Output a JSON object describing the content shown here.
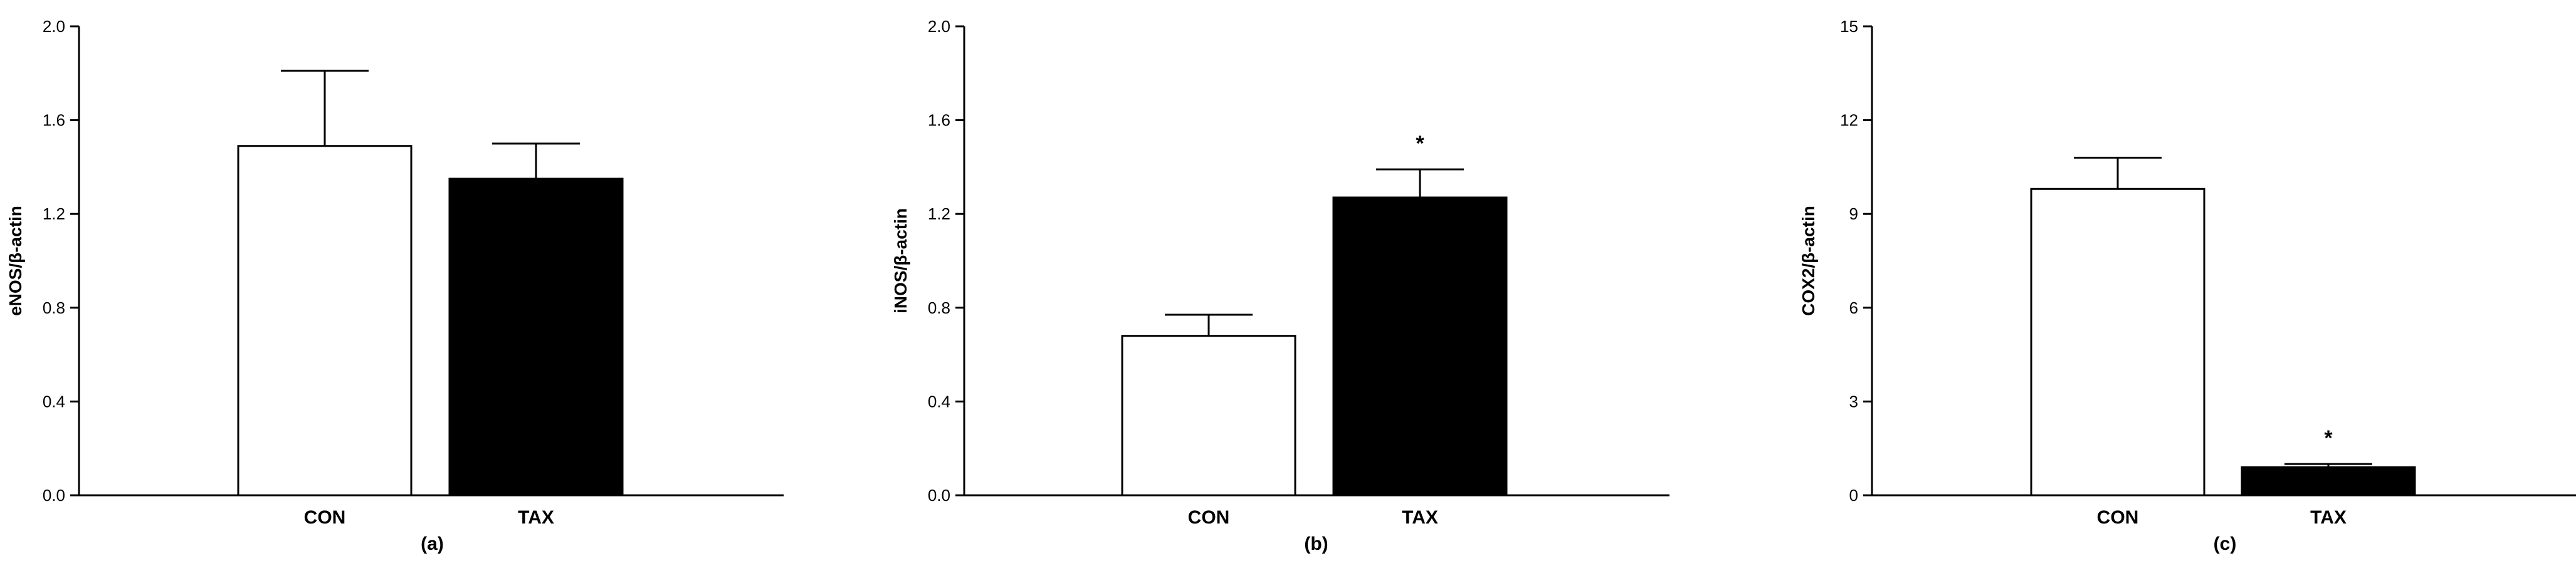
{
  "chart_data": [
    {
      "type": "bar",
      "panel_label": "(a)",
      "ylabel": "eNOS/β-actin",
      "ylim": [
        0,
        2.0
      ],
      "yticks": [
        "0.0",
        "0.4",
        "0.8",
        "1.2",
        "1.6",
        "2.0"
      ],
      "yticks_values": [
        0,
        0.4,
        0.8,
        1.2,
        1.6,
        2.0
      ],
      "categories": [
        "CON",
        "TAX"
      ],
      "values": [
        1.49,
        1.35
      ],
      "errors": [
        0.32,
        0.15
      ],
      "significance": [
        "",
        ""
      ],
      "bar_fills": [
        "#ffffff",
        "#000000"
      ]
    },
    {
      "type": "bar",
      "panel_label": "(b)",
      "ylabel": "iNOS/β-actin",
      "ylim": [
        0,
        2.0
      ],
      "yticks": [
        "0.0",
        "0.4",
        "0.8",
        "1.2",
        "1.6",
        "2.0"
      ],
      "yticks_values": [
        0,
        0.4,
        0.8,
        1.2,
        1.6,
        2.0
      ],
      "categories": [
        "CON",
        "TAX"
      ],
      "values": [
        0.68,
        1.27
      ],
      "errors": [
        0.09,
        0.12
      ],
      "significance": [
        "",
        "*"
      ],
      "bar_fills": [
        "#ffffff",
        "#000000"
      ]
    },
    {
      "type": "bar",
      "panel_label": "(c)",
      "ylabel": "COX2/β-actin",
      "ylim": [
        0,
        15
      ],
      "yticks": [
        "0",
        "3",
        "6",
        "9",
        "12",
        "15"
      ],
      "yticks_values": [
        0,
        3,
        6,
        9,
        12,
        15
      ],
      "categories": [
        "CON",
        "TAX"
      ],
      "values": [
        9.8,
        0.9
      ],
      "errors": [
        1.0,
        0.1
      ],
      "significance": [
        "",
        "*"
      ],
      "bar_fills": [
        "#ffffff",
        "#000000"
      ]
    }
  ]
}
